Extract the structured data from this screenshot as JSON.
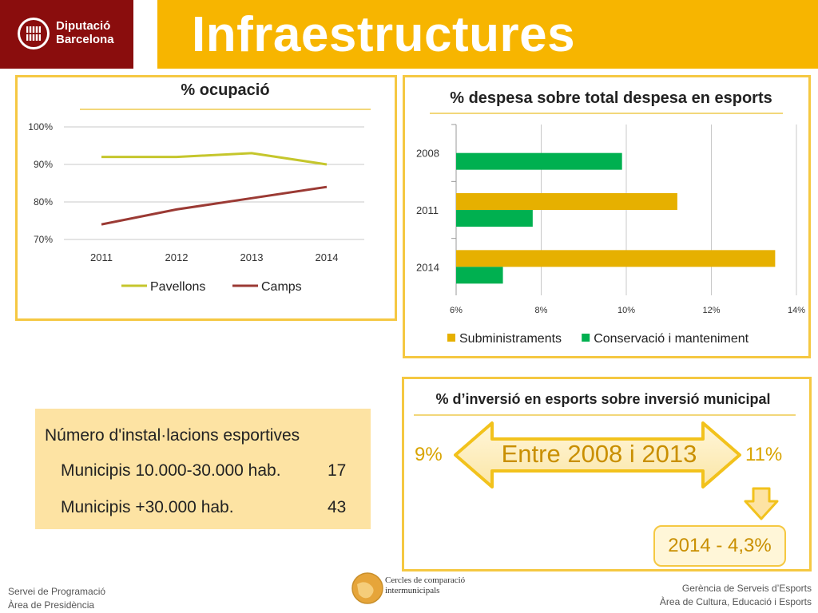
{
  "header": {
    "logo_line1": "Diputació",
    "logo_line2": "Barcelona",
    "title": "Infraestructures"
  },
  "occupancy": {
    "title": "% ocupació",
    "chart_data": {
      "type": "line",
      "categories": [
        "2011",
        "2012",
        "2013",
        "2014"
      ],
      "series": [
        {
          "name": "Pavellons",
          "values": [
            92,
            92,
            93,
            90
          ],
          "color": "#c5c62c"
        },
        {
          "name": "Camps",
          "values": [
            74,
            78,
            81,
            84
          ],
          "color": "#9b3a34"
        }
      ],
      "ylim": [
        70,
        100
      ],
      "yticks": [
        "70%",
        "80%",
        "90%",
        "100%"
      ],
      "legend": "bottom",
      "grid": true
    }
  },
  "expense": {
    "title": "% despesa sobre total despesa en esports",
    "chart_data": {
      "type": "bar",
      "orientation": "horizontal",
      "categories": [
        "2008",
        "2011",
        "2014"
      ],
      "series": [
        {
          "name": "Subministraments",
          "values": [
            null,
            11.2,
            13.5
          ],
          "color": "#e6b000"
        },
        {
          "name": "Conservació i manteniment",
          "values": [
            9.9,
            7.8,
            7.1
          ],
          "color": "#00b050"
        }
      ],
      "xlim": [
        6,
        14
      ],
      "xticks": [
        "6%",
        "8%",
        "10%",
        "12%",
        "14%"
      ],
      "legend": "bottom",
      "grid": true
    }
  },
  "installations": {
    "heading": "Número d'instal·lacions esportives",
    "rows": [
      {
        "label": "Municipis 10.000-30.000 hab.",
        "value": "17"
      },
      {
        "label": "Municipis +30.000 hab.",
        "value": "43"
      }
    ]
  },
  "investment": {
    "title": "% d’inversió en esports sobre inversió municipal",
    "from": "9%",
    "to": "11%",
    "period": "Entre 2008 i 2013",
    "result": "2014 - 4,3%"
  },
  "footer": {
    "left_line1": "Servei de Programació",
    "left_line2": "Àrea de Presidència",
    "center_line1": "Cercles de comparació",
    "center_line2": "intermunicipals",
    "right_line1": "Gerència de Serveis d’Esports",
    "right_line2": "Àrea de Cultura, Educació i Esports"
  },
  "colors": {
    "brand_red": "#8a0d0d",
    "accent_gold": "#f7b500",
    "panel_border": "#f5c842"
  }
}
